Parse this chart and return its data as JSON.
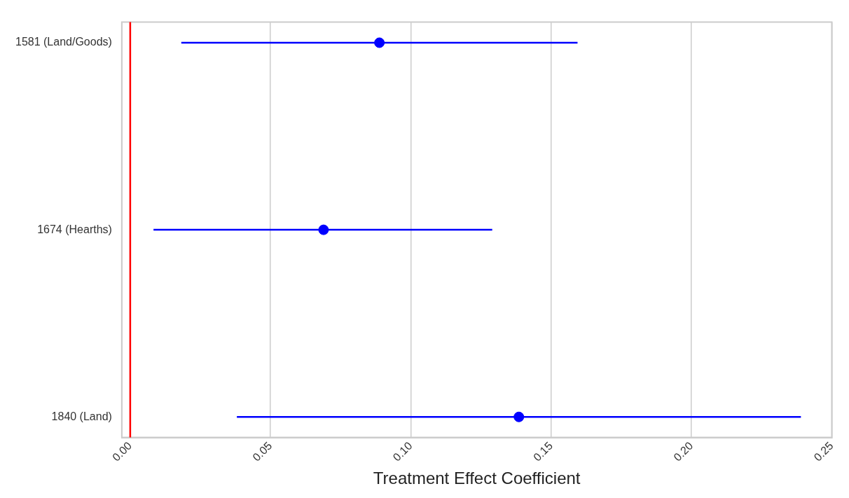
{
  "chart_data": {
    "type": "scatter",
    "xlabel": "Treatment Effect Coefficient",
    "categories": [
      "1581 (Land/Goods)",
      "1674 (Hearths)",
      "1840 (Land)"
    ],
    "values": [
      0.0888,
      0.0689,
      0.1385
    ],
    "errors": [
      [
        0.0182,
        0.1594
      ],
      [
        0.0083,
        0.129
      ],
      [
        0.038,
        0.239
      ]
    ],
    "color": "#0000ff",
    "marker": "circle",
    "orientation": "horizontal",
    "xlim": [
      -0.003,
      0.25
    ],
    "xticks": [
      {
        "value": 0,
        "label": "0.00"
      },
      {
        "value": 0.05,
        "label": "0.05"
      },
      {
        "value": 0.1,
        "label": "0.10"
      },
      {
        "value": 0.15,
        "label": "0.15"
      },
      {
        "value": 0.2,
        "label": "0.20"
      },
      {
        "value": 0.25,
        "label": "0.25"
      }
    ],
    "ref_lines": [
      {
        "axis": "x",
        "value": 0,
        "color": "#ff0000"
      }
    ],
    "grid": "x",
    "legend": false
  }
}
